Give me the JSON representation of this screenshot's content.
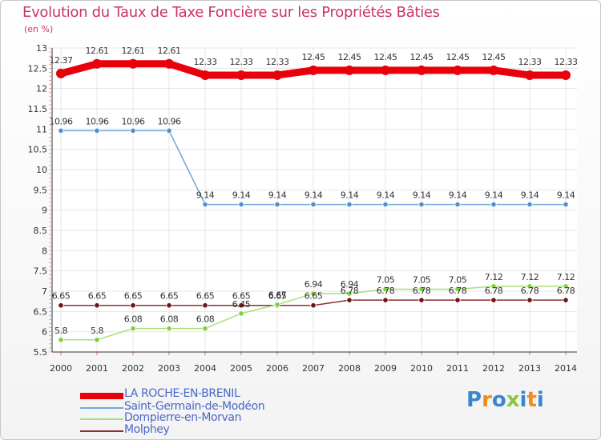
{
  "title": "Evolution du Taux de Taxe Foncière sur les Propriétés Bâties",
  "unit_label": "(en %)",
  "logo": {
    "letters": [
      "P",
      "r",
      "o",
      "x",
      "i",
      "t",
      "i"
    ],
    "colors": [
      "#3b86d1",
      "#f28a1c",
      "#3b86d1",
      "#8cc63f",
      "#3b86d1",
      "#f28a1c",
      "#3b86d1"
    ]
  },
  "chart_data": {
    "type": "line",
    "x": [
      "2000",
      "2001",
      "2002",
      "2003",
      "2004",
      "2005",
      "2006",
      "2007",
      "2008",
      "2009",
      "2010",
      "2011",
      "2012",
      "2013",
      "2014"
    ],
    "ylim": [
      5.5,
      13
    ],
    "yticks": [
      "5.5",
      "6",
      "6.5",
      "7",
      "7.5",
      "8",
      "8.5",
      "9",
      "9.5",
      "10",
      "10.5",
      "11",
      "11.5",
      "12",
      "12.5",
      "13"
    ],
    "series": [
      {
        "name": "LA ROCHE-EN-BRENIL",
        "color": "#e8000b",
        "marker": "#e8000b",
        "values": [
          12.37,
          12.61,
          12.61,
          12.61,
          12.33,
          12.33,
          12.33,
          12.45,
          12.45,
          12.45,
          12.45,
          12.45,
          12.45,
          12.33,
          12.33
        ],
        "labels": [
          "12.37",
          "12.61",
          "12.61",
          "12.61",
          "12.33",
          "12.33",
          "12.33",
          "12.45",
          "12.45",
          "12.45",
          "12.45",
          "12.45",
          "12.45",
          "12.33",
          "12.33"
        ]
      },
      {
        "name": "Saint-Germain-de-Modéon",
        "color": "#6fa8dc",
        "marker": "#4f8fcf",
        "values": [
          10.96,
          10.96,
          10.96,
          10.96,
          9.14,
          9.14,
          9.14,
          9.14,
          9.14,
          9.14,
          9.14,
          9.14,
          9.14,
          9.14,
          9.14
        ],
        "labels": [
          "10.96",
          "10.96",
          "10.96",
          "10.96",
          "9.14",
          "9.14",
          "9.14",
          "9.14",
          "9.14",
          "9.14",
          "9.14",
          "9.14",
          "9.14",
          "9.14",
          "9.14"
        ]
      },
      {
        "name": "Dompierre-en-Morvan",
        "color": "#a8e07a",
        "marker": "#7fcf3f",
        "values": [
          5.8,
          5.8,
          6.08,
          6.08,
          6.08,
          6.45,
          6.67,
          6.94,
          6.94,
          7.05,
          7.05,
          7.05,
          7.12,
          7.12,
          7.12
        ],
        "labels": [
          "5.8",
          "5.8",
          "6.08",
          "6.08",
          "6.08",
          "6.45",
          "6.67",
          "6.94",
          "6.94",
          "7.05",
          "7.05",
          "7.05",
          "7.12",
          "7.12",
          "7.12"
        ]
      },
      {
        "name": "Molphey",
        "color": "#8b2e2e",
        "marker": "#6b1515",
        "values": [
          6.65,
          6.65,
          6.65,
          6.65,
          6.65,
          6.65,
          6.65,
          6.65,
          6.78,
          6.78,
          6.78,
          6.78,
          6.78,
          6.78,
          6.78
        ],
        "labels": [
          "6.65",
          "6.65",
          "6.65",
          "6.65",
          "6.65",
          "6.65",
          "6.65",
          "6.65",
          "6.78",
          "6.78",
          "6.78",
          "6.78",
          "6.78",
          "6.78",
          "6.78"
        ]
      }
    ]
  }
}
